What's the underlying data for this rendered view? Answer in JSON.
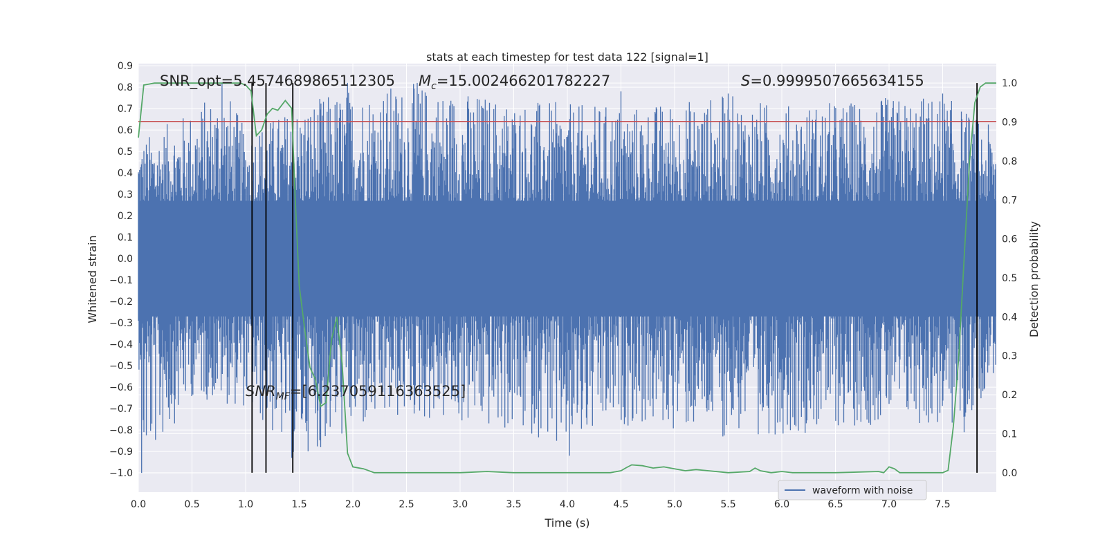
{
  "chart_data": {
    "type": "line",
    "title": "stats at each timestep for test data 122 [signal=1]",
    "xlabel": "Time (s)",
    "ylabel": "Whitened strain",
    "ylabel_right": "Detection probability",
    "xlim": [
      0,
      8
    ],
    "ylim": [
      -1.09,
      0.91
    ],
    "ylim_right": [
      -0.05,
      1.05
    ],
    "x_ticks": [
      0,
      0.5,
      1,
      1.5,
      2,
      2.5,
      3,
      3.5,
      4,
      4.5,
      5,
      5.5,
      6,
      6.5,
      7,
      7.5
    ],
    "x_tick_labels": [
      "0.0",
      "0.5",
      "1.0",
      "1.5",
      "2.0",
      "2.5",
      "3.0",
      "3.5",
      "4.0",
      "4.5",
      "5.0",
      "5.5",
      "6.0",
      "6.5",
      "7.0",
      "7.5"
    ],
    "y_ticks": [
      0.9,
      0.8,
      0.7,
      0.6,
      0.5,
      0.4,
      0.3,
      0.2,
      0.1,
      0.0,
      -0.1,
      -0.2,
      -0.3,
      -0.4,
      -0.5,
      -0.6,
      -0.7,
      -0.8,
      -0.9,
      -1.0
    ],
    "y_tick_labels": [
      "0.9",
      "0.8",
      "0.7",
      "0.6",
      "0.5",
      "0.4",
      "0.3",
      "0.2",
      "0.1",
      "0.0",
      "−0.1",
      "−0.2",
      "−0.3",
      "−0.4",
      "−0.5",
      "−0.6",
      "−0.7",
      "−0.8",
      "−0.9",
      "−1.0"
    ],
    "y_right_ticks": [
      1.0,
      0.9,
      0.8,
      0.7,
      0.6,
      0.5,
      0.4,
      0.3,
      0.2,
      0.1,
      0.0
    ],
    "y_right_tick_labels": [
      "1.0",
      "0.9",
      "0.8",
      "0.7",
      "0.6",
      "0.5",
      "0.4",
      "0.3",
      "0.2",
      "0.1",
      "0.0"
    ],
    "waveform": {
      "name": "waveform with noise",
      "color": "#4c72b0",
      "dense_band": [
        -0.27,
        0.27
      ],
      "envelope_upper": [
        [
          0,
          0.55
        ],
        [
          0.5,
          0.7
        ],
        [
          0.8,
          0.82
        ],
        [
          1.0,
          0.6
        ],
        [
          1.5,
          0.72
        ],
        [
          1.95,
          0.8
        ],
        [
          2.6,
          0.82
        ],
        [
          3.5,
          0.75
        ],
        [
          4.1,
          0.72
        ],
        [
          4.7,
          0.72
        ],
        [
          5.5,
          0.77
        ],
        [
          6.0,
          0.72
        ],
        [
          6.9,
          0.75
        ],
        [
          7.5,
          0.77
        ],
        [
          8.0,
          0.6
        ]
      ],
      "envelope_lower": [
        [
          0.03,
          -1.0
        ],
        [
          0.5,
          -0.65
        ],
        [
          1.0,
          -0.7
        ],
        [
          1.43,
          -0.93
        ],
        [
          1.7,
          -0.88
        ],
        [
          2.5,
          -0.75
        ],
        [
          3.9,
          -0.85
        ],
        [
          4.02,
          -0.92
        ],
        [
          4.5,
          -0.78
        ],
        [
          5.5,
          -0.83
        ],
        [
          6.1,
          -0.82
        ],
        [
          7.0,
          -0.77
        ],
        [
          7.7,
          -0.81
        ],
        [
          8.0,
          -0.52
        ]
      ],
      "low_spikes": [
        [
          0.03,
          -1.0
        ],
        [
          1.43,
          -0.93
        ],
        [
          1.7,
          -0.88
        ],
        [
          3.9,
          -0.85
        ],
        [
          4.02,
          -0.92
        ],
        [
          5.45,
          -0.83
        ],
        [
          5.78,
          -0.82
        ],
        [
          7.7,
          -0.81
        ]
      ],
      "high_spikes": [
        [
          0.78,
          0.82
        ],
        [
          1.95,
          0.82
        ],
        [
          2.6,
          0.82
        ],
        [
          4.5,
          0.78
        ],
        [
          5.5,
          0.77
        ],
        [
          7.5,
          0.77
        ]
      ]
    },
    "detection_probability": {
      "color": "#55a868",
      "x": [
        0,
        0.05,
        0.15,
        0.3,
        0.5,
        0.8,
        0.95,
        1.0,
        1.05,
        1.1,
        1.15,
        1.2,
        1.25,
        1.3,
        1.37,
        1.43,
        1.46,
        1.5,
        1.55,
        1.6,
        1.65,
        1.7,
        1.75,
        1.8,
        1.85,
        1.9,
        1.95,
        2.0,
        2.1,
        2.2,
        2.5,
        3.0,
        3.25,
        3.5,
        4.0,
        4.4,
        4.5,
        4.55,
        4.6,
        4.7,
        4.8,
        4.9,
        5.0,
        5.1,
        5.2,
        5.5,
        5.7,
        5.75,
        5.8,
        5.9,
        6.0,
        6.1,
        6.5,
        6.9,
        6.95,
        7.0,
        7.05,
        7.1,
        7.15,
        7.2,
        7.5,
        7.55,
        7.6,
        7.65,
        7.7,
        7.75,
        7.8,
        7.85,
        7.9,
        8.0
      ],
      "y": [
        0.86,
        0.995,
        1.0,
        1.0,
        1.0,
        1.0,
        1.0,
        0.995,
        0.98,
        0.865,
        0.88,
        0.92,
        0.935,
        0.93,
        0.955,
        0.935,
        0.72,
        0.48,
        0.37,
        0.27,
        0.24,
        0.17,
        0.18,
        0.34,
        0.4,
        0.28,
        0.05,
        0.015,
        0.01,
        0.0,
        0.0,
        0.0,
        0.003,
        0.0,
        0.0,
        0.0,
        0.005,
        0.013,
        0.02,
        0.018,
        0.012,
        0.015,
        0.01,
        0.005,
        0.008,
        0.0,
        0.003,
        0.012,
        0.005,
        0.0,
        0.003,
        0.0,
        0.0,
        0.003,
        0.0,
        0.015,
        0.01,
        0.0,
        0.0,
        0.0,
        0.0,
        0.006,
        0.12,
        0.3,
        0.55,
        0.8,
        0.95,
        0.99,
        1.0,
        1.0
      ]
    },
    "threshold": {
      "value": 0.64,
      "color": "#c44e52"
    },
    "vertical_lines": [
      1.06,
      1.19,
      1.44,
      7.82
    ],
    "annotations": {
      "snr_opt": "SNR_opt=5.457468986511 2305",
      "mc_symbol": "M",
      "mc_sub": "c",
      "mc_value": "=15.002466201782227",
      "s_symbol": "S",
      "s_value": "=0.9999507665634155",
      "snr_mf_symbol": "SNR",
      "snr_mf_sub": "MF",
      "snr_mf_value": "=[6.237059116363525]"
    },
    "legend": {
      "position": "lower-right",
      "entries": [
        "waveform with noise"
      ]
    }
  }
}
